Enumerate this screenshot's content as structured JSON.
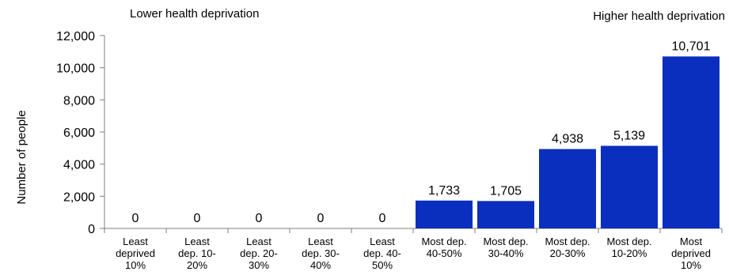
{
  "chart_data": {
    "type": "bar",
    "title": "",
    "xlabel": "",
    "ylabel": "Number of people",
    "ylim": [
      0,
      12000
    ],
    "yticks": [
      "0",
      "2,000",
      "4,000",
      "6,000",
      "8,000",
      "10,000",
      "12,000"
    ],
    "ytick_values": [
      0,
      2000,
      4000,
      6000,
      8000,
      10000,
      12000
    ],
    "categories": [
      [
        "Least",
        "deprived",
        "10%"
      ],
      [
        "Least",
        "dep. 10-",
        "20%"
      ],
      [
        "Least",
        "dep. 20-",
        "30%"
      ],
      [
        "Least",
        "dep. 30-",
        "40%"
      ],
      [
        "Least",
        "dep. 40-",
        "50%"
      ],
      [
        "Most dep.",
        "40-50%"
      ],
      [
        "Most dep.",
        "30-40%"
      ],
      [
        "Most dep.",
        "20-30%"
      ],
      [
        "Most dep.",
        "10-20%"
      ],
      [
        "Most",
        "deprived",
        "10%"
      ]
    ],
    "values": [
      0,
      0,
      0,
      0,
      0,
      1733,
      1705,
      4938,
      5139,
      10701
    ],
    "data_labels": [
      "0",
      "0",
      "0",
      "0",
      "0",
      "1,733",
      "1,705",
      "4,938",
      "5,139",
      "10,701"
    ],
    "grid": false,
    "bar_color": "#0a2ebd"
  },
  "annotations": {
    "left": "Lower health deprivation",
    "right": "Higher health deprivation"
  }
}
